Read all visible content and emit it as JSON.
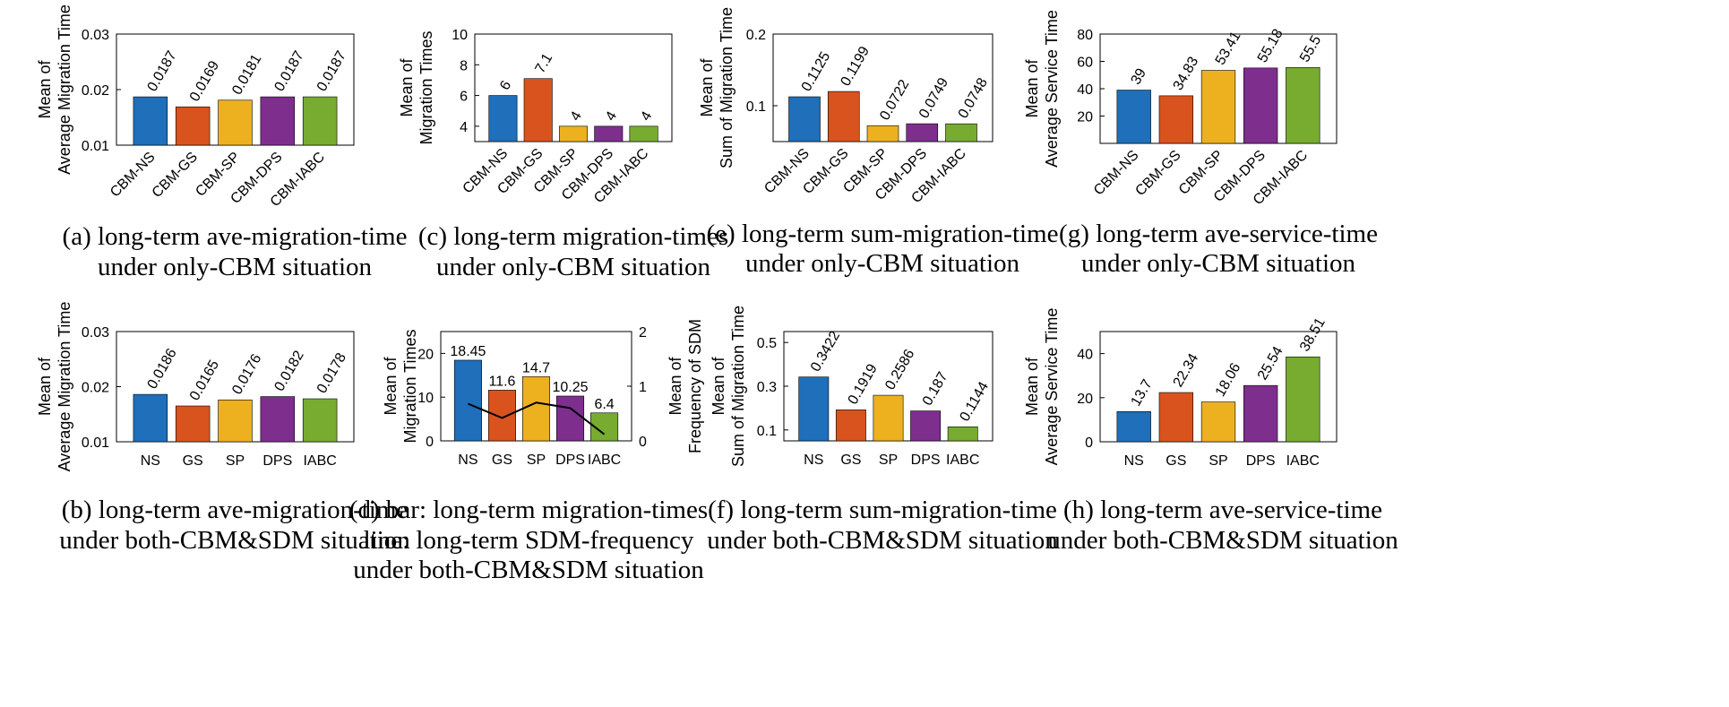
{
  "colors": {
    "blue": "#1f6fba",
    "orange": "#d9531e",
    "yellow": "#edb120",
    "purple": "#7e2f8e",
    "green": "#77ac30",
    "line": "#000000"
  },
  "chart_data": [
    {
      "id": "a",
      "type": "bar",
      "categories": [
        "CBM-NS",
        "CBM-GS",
        "CBM-SP",
        "CBM-DPS",
        "CBM-IABC"
      ],
      "values": [
        0.0187,
        0.0169,
        0.0181,
        0.0187,
        0.0187
      ],
      "value_labels": [
        "0.0187",
        "0.0169",
        "0.0181",
        "0.0187",
        "0.0187"
      ],
      "ylim": [
        0.01,
        0.03
      ],
      "yticks": [
        "0.01",
        "0.02",
        "0.03"
      ],
      "ylabel": [
        "Mean of",
        "Average Migration Time"
      ],
      "caption": [
        "(a) long-term ave-migration-time",
        "under only-CBM situation"
      ]
    },
    {
      "id": "c",
      "type": "bar",
      "categories": [
        "CBM-NS",
        "CBM-GS",
        "CBM-SP",
        "CBM-DPS",
        "CBM-IABC"
      ],
      "values": [
        6,
        7.1,
        4,
        4,
        4
      ],
      "value_labels": [
        "6",
        "7.1",
        "4",
        "4",
        "4"
      ],
      "ylim": [
        3,
        10
      ],
      "yticks": [
        "4",
        "6",
        "8",
        "10"
      ],
      "ylabel": [
        "Mean of",
        "Migration Times"
      ],
      "caption": [
        "(c) long-term migration-times",
        "under only-CBM situation"
      ]
    },
    {
      "id": "e",
      "type": "bar",
      "categories": [
        "CBM-NS",
        "CBM-GS",
        "CBM-SP",
        "CBM-DPS",
        "CBM-IABC"
      ],
      "values": [
        0.1125,
        0.1199,
        0.0722,
        0.0749,
        0.0748
      ],
      "value_labels": [
        "0.1125",
        "0.1199",
        "0.0722",
        "0.0749",
        "0.0748"
      ],
      "ylim": [
        0.05,
        0.2
      ],
      "yticks": [
        "0.1",
        "0.2"
      ],
      "ylabel": [
        "Mean of",
        "Sum of Migration Time"
      ],
      "caption": [
        "(e) long-term sum-migration-time",
        "under only-CBM situation"
      ]
    },
    {
      "id": "g",
      "type": "bar",
      "categories": [
        "CBM-NS",
        "CBM-GS",
        "CBM-SP",
        "CBM-DPS",
        "CBM-IABC"
      ],
      "values": [
        39,
        34.83,
        53.41,
        55.18,
        55.5
      ],
      "value_labels": [
        "39",
        "34.83",
        "53.41",
        "55.18",
        "55.5"
      ],
      "ylim": [
        0,
        80
      ],
      "yticks": [
        "20",
        "40",
        "60",
        "80"
      ],
      "ylabel": [
        "Mean of",
        "Average Service Time"
      ],
      "caption": [
        "(g) long-term ave-service-time",
        "under only-CBM situation"
      ]
    },
    {
      "id": "b",
      "type": "bar",
      "categories": [
        "NS",
        "GS",
        "SP",
        "DPS",
        "IABC"
      ],
      "values": [
        0.0186,
        0.0165,
        0.0176,
        0.0182,
        0.0178
      ],
      "value_labels": [
        "0.0186",
        "0.0165",
        "0.0176",
        "0.0182",
        "0.0178"
      ],
      "ylim": [
        0.01,
        0.03
      ],
      "yticks": [
        "0.01",
        "0.02",
        "0.03"
      ],
      "ylabel": [
        "Mean of",
        "Average Migration Time"
      ],
      "caption": [
        "(b) long-term ave-migration-time",
        "under both-CBM&SDM situation"
      ]
    },
    {
      "id": "d",
      "type": "bar",
      "categories": [
        "NS",
        "GS",
        "SP",
        "DPS",
        "IABC"
      ],
      "values": [
        18.45,
        11.6,
        14.7,
        10.25,
        6.4
      ],
      "value_labels": [
        "18.45",
        "11.6",
        "14.7",
        "10.25",
        "6.4"
      ],
      "ylim": [
        0,
        25
      ],
      "yticks": [
        "0",
        "10",
        "20"
      ],
      "ylabel": [
        "Mean of",
        "Migration Times"
      ],
      "y2": {
        "values": [
          0.68,
          0.42,
          0.7,
          0.6,
          0.12
        ],
        "ylim": [
          0,
          2
        ],
        "yticks": [
          "0",
          "1",
          "2"
        ],
        "ylabel": [
          "Mean of",
          "Frequency of SDM"
        ]
      },
      "caption": [
        "(d) bar: long-term migration-times",
        "line: long-term SDM-frequency",
        "under both-CBM&SDM situation"
      ]
    },
    {
      "id": "f",
      "type": "bar",
      "categories": [
        "NS",
        "GS",
        "SP",
        "DPS",
        "IABC"
      ],
      "values": [
        0.3422,
        0.1919,
        0.2586,
        0.187,
        0.1144
      ],
      "value_labels": [
        "0.3422",
        "0.1919",
        "0.2586",
        "0.187",
        "0.1144"
      ],
      "ylim": [
        0.05,
        0.55
      ],
      "yticks": [
        "0.1",
        "0.3",
        "0.5"
      ],
      "ylabel": [
        "Mean of",
        "Sum of Migration Time"
      ],
      "caption": [
        "(f) long-term sum-migration-time",
        "under both-CBM&SDM situation"
      ]
    },
    {
      "id": "h",
      "type": "bar",
      "categories": [
        "NS",
        "GS",
        "SP",
        "DPS",
        "IABC"
      ],
      "values": [
        13.7,
        22.34,
        18.06,
        25.54,
        38.51
      ],
      "value_labels": [
        "13.7",
        "22.34",
        "18.06",
        "25.54",
        "38.51"
      ],
      "ylim": [
        0,
        50
      ],
      "yticks": [
        "0",
        "20",
        "40"
      ],
      "ylabel": [
        "Mean of",
        "Average Service Time"
      ],
      "caption": [
        "(h) long-term ave-service-time",
        "under both-CBM&SDM situation"
      ]
    }
  ]
}
